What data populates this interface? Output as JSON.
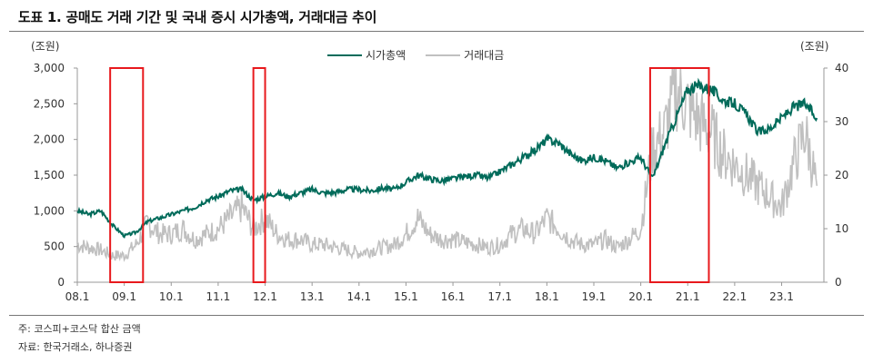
{
  "header": {
    "title": "도표 1. 공매도 거래 기간 및 국내 증시 시가총액, 거래대금 추이"
  },
  "axes": {
    "left_unit": "(조원)",
    "right_unit": "(조원)"
  },
  "legend": [
    {
      "label": "시가총액",
      "color": "#006B5A"
    },
    {
      "label": "거래대금",
      "color": "#C0C0C0"
    }
  ],
  "footer": {
    "note": "주: 코스피+코스닥 합산 금액",
    "source": "자료: 한국거래소, 하나증권"
  },
  "chart_data": {
    "type": "line",
    "title": "공매도 거래 기간 및 국내 증시 시가총액, 거래대금 추이",
    "xlabel": "",
    "ylabel_left": "(조원)",
    "ylabel_right": "(조원)",
    "x_ticks": [
      "08.1",
      "09.1",
      "10.1",
      "11.1",
      "12.1",
      "13.1",
      "14.1",
      "15.1",
      "16.1",
      "17.1",
      "18.1",
      "19.1",
      "20.1",
      "21.1",
      "22.1",
      "23.1"
    ],
    "y_left_ticks": [
      "0",
      "500",
      "1,000",
      "1,500",
      "2,000",
      "2,500",
      "3,000"
    ],
    "y_right_ticks": [
      "0",
      "10",
      "20",
      "30",
      "40"
    ],
    "ylim_left": [
      0,
      3000
    ],
    "ylim_right": [
      0,
      40
    ],
    "grid": false,
    "legend_position": "top-center",
    "x": [
      2008.0,
      2008.25,
      2008.5,
      2008.75,
      2009.0,
      2009.25,
      2009.5,
      2009.75,
      2010.0,
      2010.25,
      2010.5,
      2010.75,
      2011.0,
      2011.25,
      2011.5,
      2011.75,
      2012.0,
      2012.25,
      2012.5,
      2012.75,
      2013.0,
      2013.25,
      2013.5,
      2013.75,
      2014.0,
      2014.25,
      2014.5,
      2014.75,
      2015.0,
      2015.25,
      2015.5,
      2015.75,
      2016.0,
      2016.25,
      2016.5,
      2016.75,
      2017.0,
      2017.25,
      2017.5,
      2017.75,
      2018.0,
      2018.25,
      2018.5,
      2018.75,
      2019.0,
      2019.25,
      2019.5,
      2019.75,
      2020.0,
      2020.25,
      2020.5,
      2020.75,
      2021.0,
      2021.25,
      2021.5,
      2021.75,
      2022.0,
      2022.25,
      2022.5,
      2022.75,
      2023.0,
      2023.25,
      2023.5,
      2023.75
    ],
    "series": [
      {
        "name": "시가총액",
        "axis": "left",
        "color": "#006B5A",
        "values": [
          1000,
          950,
          1000,
          800,
          650,
          700,
          850,
          900,
          950,
          1000,
          1050,
          1150,
          1200,
          1280,
          1300,
          1150,
          1200,
          1250,
          1200,
          1250,
          1300,
          1250,
          1260,
          1300,
          1300,
          1280,
          1320,
          1300,
          1400,
          1500,
          1450,
          1420,
          1450,
          1480,
          1500,
          1460,
          1550,
          1650,
          1750,
          1850,
          2000,
          1950,
          1800,
          1700,
          1750,
          1700,
          1600,
          1680,
          1750,
          1450,
          1900,
          2300,
          2700,
          2750,
          2700,
          2550,
          2500,
          2350,
          2100,
          2150,
          2300,
          2450,
          2500,
          2300
        ]
      },
      {
        "name": "거래대금",
        "axis": "right",
        "color": "#C0C0C0",
        "values": [
          7,
          6.5,
          6,
          5,
          5,
          7,
          11,
          9,
          9,
          10,
          8,
          9,
          10,
          12,
          14,
          10,
          12,
          9,
          8,
          8,
          7,
          7,
          6.5,
          6,
          5.5,
          6,
          6.5,
          7,
          9,
          12,
          9,
          8,
          8,
          7.5,
          7,
          6.5,
          7,
          9,
          10,
          9,
          12,
          10,
          8,
          7,
          7,
          8,
          6.5,
          8,
          10,
          25,
          28,
          36,
          33,
          30,
          28,
          24,
          22,
          20,
          18,
          16,
          14,
          22,
          28,
          18
        ]
      }
    ],
    "highlight_boxes": [
      {
        "x_start": 2008.7,
        "x_end": 2009.4
      },
      {
        "x_start": 2011.75,
        "x_end": 2012.0
      },
      {
        "x_start": 2020.2,
        "x_end": 2021.45
      }
    ]
  }
}
